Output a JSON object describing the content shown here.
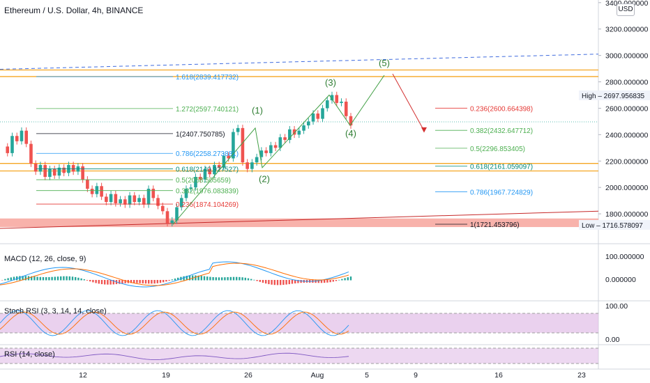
{
  "header": {
    "title": "Ethereum / U.S. Dollar, 4h, BINANCE",
    "currency": "USD"
  },
  "colors": {
    "up": "#26a69a",
    "down": "#ef5350",
    "fib_yellow": "#f5a623",
    "fib_green": "#4caf50",
    "fib_blue": "#2196f3",
    "fib_red": "#e53935",
    "support_zone": "#f7a59c",
    "projection_line": "#3f6bde",
    "wave_line": "#43a047"
  },
  "chart_data": {
    "type": "candlestick",
    "price_axis": {
      "ticks": [
        "3400.000000",
        "3200.000000",
        "3000.000000",
        "2800.000000",
        "2600.000000",
        "2400.000000",
        "2200.000000",
        "2000.000000",
        "1800.000000"
      ],
      "ylim": [
        1600,
        3420
      ]
    },
    "time_axis": {
      "ticks": [
        "12",
        "19",
        "26",
        "Aug",
        "5",
        "9",
        "16",
        "23"
      ]
    },
    "markers": {
      "high": {
        "label": "High",
        "value": "2697.956835"
      },
      "low": {
        "label": "Low",
        "value": "1716.578097"
      }
    },
    "price_path": [
      2310,
      2260,
      2390,
      2350,
      2430,
      2330,
      2180,
      2120,
      2170,
      2080,
      2140,
      2090,
      2150,
      2110,
      2170,
      2120,
      2160,
      2060,
      1990,
      1950,
      2010,
      1930,
      1890,
      1950,
      1880,
      1910,
      1870,
      1940,
      1890,
      1920,
      1870,
      1990,
      1920,
      1860,
      1820,
      1730,
      1750,
      1850,
      1920,
      1990,
      2000,
      2080,
      2060,
      2140,
      2100,
      2170,
      2150,
      2240,
      2220,
      2420,
      2450,
      2190,
      2140,
      2190,
      2230,
      2280,
      2260,
      2320,
      2300,
      2380,
      2360,
      2440,
      2400,
      2430,
      2470,
      2500,
      2560,
      2520,
      2600,
      2660,
      2700,
      2640,
      2650,
      2540,
      2470
    ],
    "fib_left": [
      {
        "label": "1.618(2839.417732)",
        "price": 2839.417732,
        "color": "#2196f3"
      },
      {
        "label": "1.272(2597.740121)",
        "price": 2597.740121,
        "color": "#4caf50"
      },
      {
        "label": "1(2407.750785)",
        "price": 2407.750785,
        "color": "#131722"
      },
      {
        "label": "0.786(2258.273881)",
        "price": 2258.273881,
        "color": "#2196f3"
      },
      {
        "label": "0.618(2140.927527)",
        "price": 2140.927527,
        "color": "#00897b"
      },
      {
        "label": "0.5(2058.505659)",
        "price": 2058.505659,
        "color": "#4caf50"
      },
      {
        "label": "0.382(1976.083839)",
        "price": 1976.083839,
        "color": "#4caf50"
      },
      {
        "label": "0.236(1874.104269)",
        "price": 1874.104269,
        "color": "#e53935"
      }
    ],
    "fib_right": [
      {
        "label": "0.236(2600.664398)",
        "price": 2600.664398,
        "color": "#e53935"
      },
      {
        "label": "0.382(2432.647712)",
        "price": 2432.647712,
        "color": "#4caf50"
      },
      {
        "label": "0.5(2296.853405)",
        "price": 2296.853405,
        "color": "#4caf50"
      },
      {
        "label": "0.618(2161.059097)",
        "price": 2161.059097,
        "color": "#00897b"
      },
      {
        "label": "0.786(1967.724829)",
        "price": 1967.724829,
        "color": "#2196f3"
      },
      {
        "label": "1(1721.453796)",
        "price": 1721.453796,
        "color": "#131722"
      }
    ],
    "wave_labels": [
      "(1)",
      "(2)",
      "(3)",
      "(4)",
      "(5)"
    ],
    "indicators": {
      "macd": {
        "label": "MACD (12, 26, close, 9)",
        "ticks": [
          "100.000000",
          "0.000000"
        ]
      },
      "stoch_rsi": {
        "label": "Stoch RSI (3, 3, 14, 14, close)",
        "ticks": [
          "100.00",
          "0.00"
        ]
      },
      "rsi": {
        "label": "RSI (14, close)"
      }
    }
  }
}
